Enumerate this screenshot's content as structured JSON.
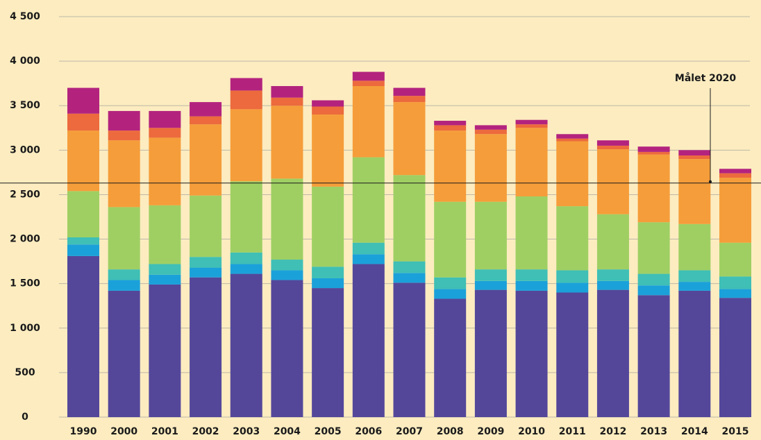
{
  "chart_data": {
    "type": "stacked_bar",
    "categories": [
      "1990",
      "2000",
      "2001",
      "2002",
      "2003",
      "2004",
      "2005",
      "2006",
      "2007",
      "2008",
      "2009",
      "2010",
      "2011",
      "2012",
      "2013",
      "2014",
      "2015"
    ],
    "series": [
      {
        "color": "#54479a",
        "values": [
          1810,
          1420,
          1490,
          1570,
          1610,
          1540,
          1450,
          1720,
          1510,
          1330,
          1430,
          1420,
          1400,
          1430,
          1370,
          1420,
          1340
        ]
      },
      {
        "color": "#1ba1d9",
        "values": [
          130,
          120,
          110,
          110,
          110,
          110,
          110,
          110,
          110,
          110,
          100,
          110,
          110,
          100,
          110,
          100,
          100
        ]
      },
      {
        "color": "#3fbfb5",
        "values": [
          80,
          120,
          120,
          120,
          130,
          120,
          130,
          130,
          130,
          130,
          130,
          130,
          140,
          130,
          130,
          130,
          140
        ]
      },
      {
        "color": "#9fcf63",
        "values": [
          520,
          700,
          660,
          690,
          800,
          910,
          900,
          960,
          970,
          850,
          760,
          820,
          720,
          620,
          580,
          520,
          380
        ]
      },
      {
        "color": "#f59d3a",
        "values": [
          680,
          750,
          760,
          800,
          810,
          820,
          810,
          800,
          820,
          800,
          760,
          770,
          730,
          730,
          760,
          730,
          730
        ]
      },
      {
        "color": "#ec6a3d",
        "values": [
          190,
          110,
          110,
          90,
          210,
          90,
          90,
          60,
          70,
          60,
          50,
          40,
          30,
          40,
          30,
          40,
          50
        ]
      },
      {
        "color": "#b3237e",
        "values": [
          290,
          220,
          190,
          160,
          140,
          130,
          70,
          100,
          90,
          50,
          50,
          50,
          50,
          60,
          60,
          60,
          50
        ]
      }
    ],
    "ylim": [
      0,
      4500
    ],
    "yticks": [
      0,
      500,
      {
        "value": 1000,
        "label": "1 000"
      },
      {
        "value": 1500,
        "label": "1 500"
      },
      {
        "value": 2000,
        "label": "2 000"
      },
      {
        "value": 2500,
        "label": "2 500"
      },
      {
        "value": 3000,
        "label": "3 000"
      },
      {
        "value": 3500,
        "label": "3 500"
      },
      {
        "value": 4000,
        "label": "4 000"
      },
      {
        "value": 4500,
        "label": "4 500"
      }
    ],
    "grid": true,
    "target": {
      "value": 2630,
      "label": "Målet 2020"
    }
  }
}
